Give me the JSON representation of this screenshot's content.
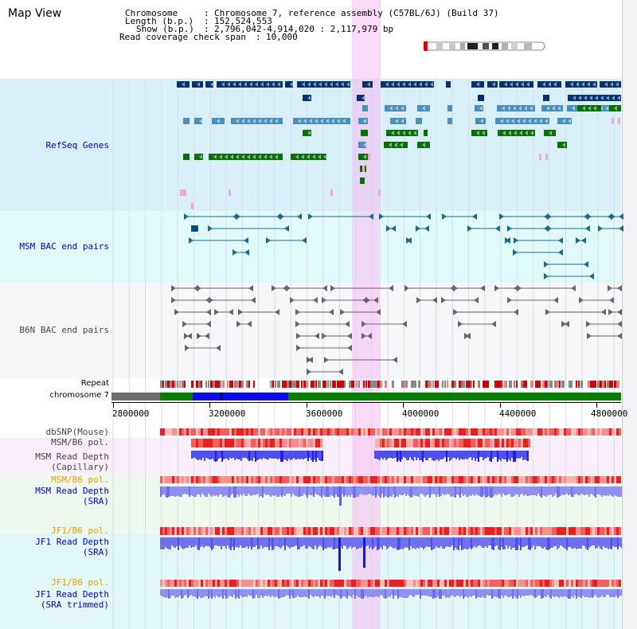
{
  "window": {
    "title": "Map View"
  },
  "header": {
    "chromosome_label": "Chromosome",
    "chromosome_value": "Chromosome 7, reference assembly (C57BL/6J) (Build 37)",
    "length_label": "Length (b.p.)",
    "length_value": "152,524,553",
    "show_label": "Show (b.p.)",
    "show_value": "2,796,042-4,914,020 : 2,117,979 bp",
    "coverage_label": "Read coverage check span",
    "coverage_value": "10,000",
    "separator": ":"
  },
  "tracks": {
    "refseq": {
      "label": "RefSeq Genes",
      "color": "#0000cc"
    },
    "msm_bac": {
      "label": "MSM BAC end pairs",
      "color": "#0000cc"
    },
    "b6n_bac": {
      "label": "B6N BAC end pairs",
      "color": "#444444"
    },
    "repeat": {
      "label": "Repeat"
    },
    "chromosome": {
      "label": "chromosome 7"
    },
    "dbsnp": {
      "label": "dbSNP(Mouse)"
    },
    "msm_pol_cap": {
      "label": "MSM/B6 pol."
    },
    "msm_depth_cap": {
      "label_line1": "MSM Read Depth",
      "label_line2": "(Capillary)"
    },
    "msm_pol_sra": {
      "label": "MSM/B6 pol.",
      "color": "#e8a000"
    },
    "msm_depth_sra": {
      "label_line1": "MSM Read Depth",
      "label_line2": "(SRA)"
    },
    "jf1_pol_sra": {
      "label": "JF1/B6 pol."
    },
    "jf1_depth_sra": {
      "label_line1": "JF1 Read Depth",
      "label_line2": "(SRA)"
    },
    "jf1_pol_trim": {
      "label": "JF1/B6 pol."
    },
    "jf1_depth_trim": {
      "label_line1": "JF1 Read Depth",
      "label_line2": "(SRA trimmed)"
    }
  },
  "axis": {
    "ticks": [
      "2800000",
      "3200000",
      "3600000",
      "4000000",
      "4400000",
      "4800000"
    ]
  },
  "colors": {
    "refseq_bg": "#d8eff8",
    "bac_bg": "#e0fafa",
    "b6n_bg": "#f6f6f8",
    "highlight": "#f4c8f0",
    "gene_navy": "#05326e",
    "gene_teal": "#4a90b8",
    "gene_green": "#0a6e0a",
    "depth_blue": "#3030f0",
    "depth_light": "#8080f0"
  }
}
